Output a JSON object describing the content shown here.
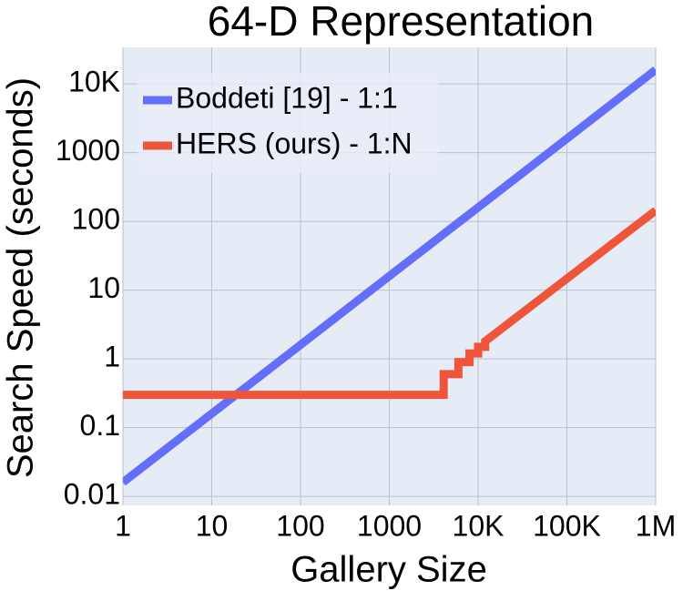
{
  "chart_data": {
    "type": "line",
    "title": "64-D Representation",
    "x_label": "Gallery Size",
    "y_label": "Search Speed (seconds)",
    "log_x": true,
    "log_y": true,
    "grid": true,
    "legend": "top-left",
    "xlim": [
      1,
      1000000
    ],
    "ylim": [
      0.0074,
      34000
    ],
    "xticks": [
      1,
      10,
      100,
      1000,
      {
        "value": 10000,
        "label": "10K"
      },
      {
        "value": 100000,
        "label": "100K"
      },
      {
        "value": 1000000,
        "label": "1M"
      }
    ],
    "yticks": [
      0.01,
      0.1,
      1,
      10,
      100,
      1000,
      {
        "value": 10000,
        "label": "10K"
      }
    ],
    "series": [
      {
        "name": "Boddeti [19] - 1:1",
        "color": "#636efa",
        "x": [
          1,
          1000000
        ],
        "values": [
          0.016,
          16000
        ]
      },
      {
        "name": "HERS (ours) - 1:N",
        "color": "#ef553b",
        "x": [
          1,
          4096,
          4096,
          6000,
          6000,
          8000,
          8000,
          10000,
          10000,
          12000,
          12000,
          1000000
        ],
        "values": [
          0.3,
          0.3,
          0.6,
          0.6,
          0.9,
          0.9,
          1.2,
          1.2,
          1.5,
          1.5,
          1.8,
          144
        ]
      }
    ]
  }
}
